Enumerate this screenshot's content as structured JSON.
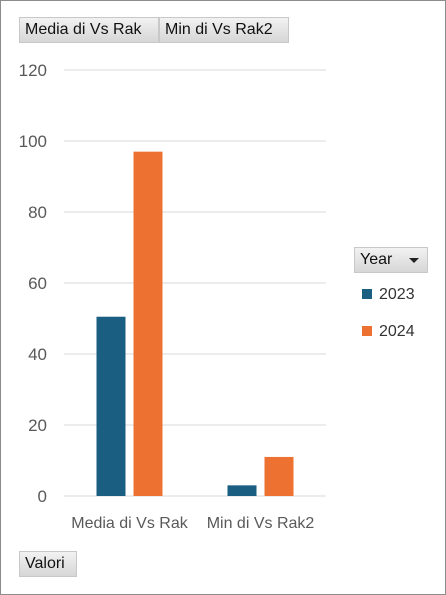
{
  "filters": {
    "media_label": "Media di Vs Rak",
    "min_label": "Min di Vs Rak2",
    "values_label": "Valori",
    "legend_field_label": "Year"
  },
  "colors": {
    "series_2023": "#1a5f82",
    "series_2024": "#ed7131",
    "grid": "#d9d9d9",
    "axis_text": "#595959"
  },
  "chart_data": {
    "type": "bar",
    "categories": [
      "Media di Vs Rak",
      "Min di Vs Rak2"
    ],
    "series": [
      {
        "name": "2023",
        "values": [
          50.5,
          3
        ]
      },
      {
        "name": "2024",
        "values": [
          97,
          11
        ]
      }
    ],
    "ylim": [
      0,
      120
    ],
    "yticks": [
      "0",
      "20",
      "40",
      "60",
      "80",
      "100",
      "120"
    ],
    "grid": true,
    "legend": "right"
  }
}
